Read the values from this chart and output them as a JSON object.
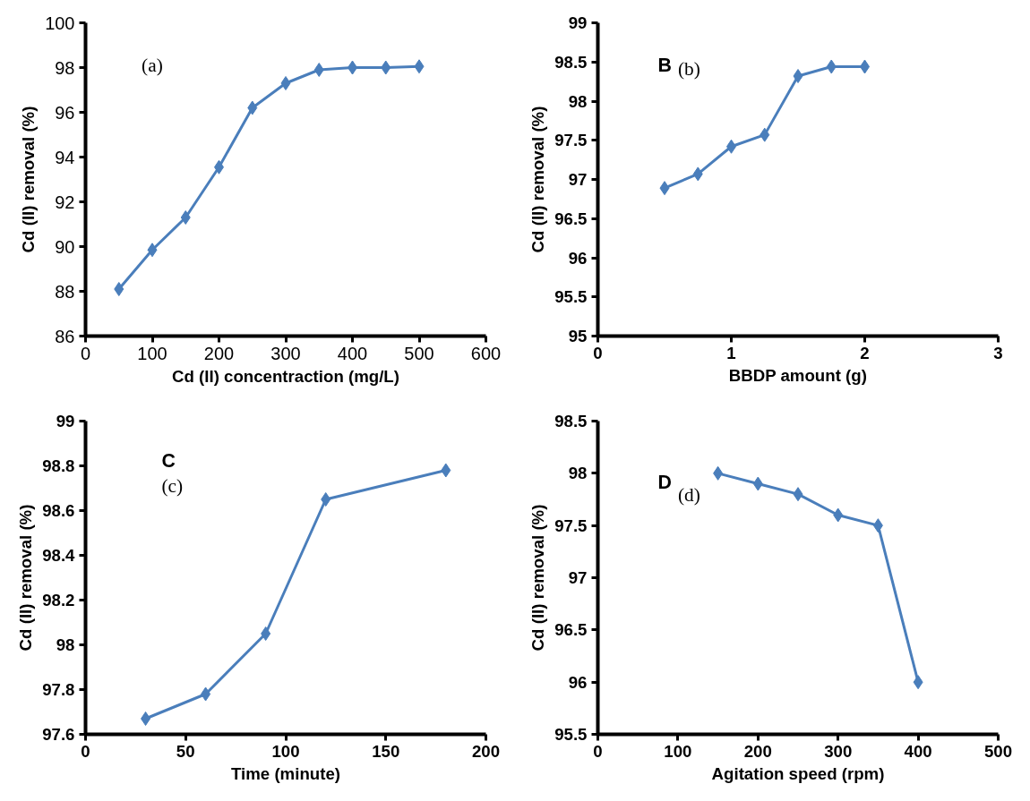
{
  "chart_data": [
    {
      "type": "line",
      "xlabel": "Cd (II) concentraction (mg/L)",
      "ylabel": "Cd (II) removal (%)",
      "x": [
        50,
        100,
        150,
        200,
        250,
        300,
        350,
        400,
        450,
        500
      ],
      "series": [
        {
          "color": "#4a7ebb",
          "values": [
            88.1,
            89.85,
            91.3,
            93.55,
            96.2,
            97.3,
            97.9,
            98.0,
            98.0,
            98.05
          ]
        }
      ],
      "xlim": [
        0,
        600
      ],
      "xticks": [
        0,
        100,
        200,
        300,
        400,
        500,
        600
      ],
      "ylim": [
        86,
        100
      ],
      "yticks": [
        86,
        88,
        90,
        92,
        94,
        96,
        98,
        100
      ],
      "marker": "diamond",
      "grid": false,
      "annotations": [
        "(a)"
      ]
    },
    {
      "type": "line",
      "xlabel": "BBDP amount (g)",
      "ylabel": "Cd (II) removal (%)",
      "x": [
        0.5,
        0.75,
        1,
        1.25,
        1.5,
        1.75,
        2
      ],
      "series": [
        {
          "color": "#4a7ebb",
          "values": [
            96.89,
            97.07,
            97.42,
            97.57,
            98.32,
            98.44,
            98.44
          ]
        }
      ],
      "xlim": [
        0,
        3
      ],
      "xticks": [
        0,
        1,
        2,
        3
      ],
      "ylim": [
        95,
        99
      ],
      "yticks": [
        95,
        95.5,
        96,
        96.5,
        97,
        97.5,
        98,
        98.5,
        99
      ],
      "marker": "diamond",
      "grid": false,
      "annotations": [
        "B",
        "(b)"
      ]
    },
    {
      "type": "line",
      "xlabel": "Time (minute)",
      "ylabel": "Cd (II) removal (%)",
      "x": [
        30,
        60,
        90,
        120,
        180
      ],
      "series": [
        {
          "color": "#4a7ebb",
          "values": [
            97.67,
            97.78,
            98.05,
            98.65,
            98.78
          ]
        }
      ],
      "xlim": [
        0,
        200
      ],
      "xticks": [
        0,
        50,
        100,
        150,
        200
      ],
      "ylim": [
        97.6,
        99
      ],
      "yticks": [
        97.6,
        97.8,
        98,
        98.2,
        98.4,
        98.6,
        98.8,
        99
      ],
      "marker": "diamond",
      "grid": false,
      "annotations": [
        "C",
        "(c)"
      ]
    },
    {
      "type": "line",
      "xlabel": "Agitation speed (rpm)",
      "ylabel": "Cd (II) removal (%)",
      "x": [
        150,
        200,
        250,
        300,
        350,
        400
      ],
      "series": [
        {
          "color": "#4a7ebb",
          "values": [
            98,
            97.9,
            97.8,
            97.6,
            97.5,
            96
          ]
        }
      ],
      "xlim": [
        0,
        500
      ],
      "xticks": [
        0,
        100,
        200,
        300,
        400,
        500
      ],
      "ylim": [
        95.5,
        98.5
      ],
      "yticks": [
        95.5,
        96,
        96.5,
        97,
        97.5,
        98,
        98.5
      ],
      "marker": "diamond",
      "grid": false,
      "annotations": [
        "D",
        "(d)"
      ]
    }
  ]
}
